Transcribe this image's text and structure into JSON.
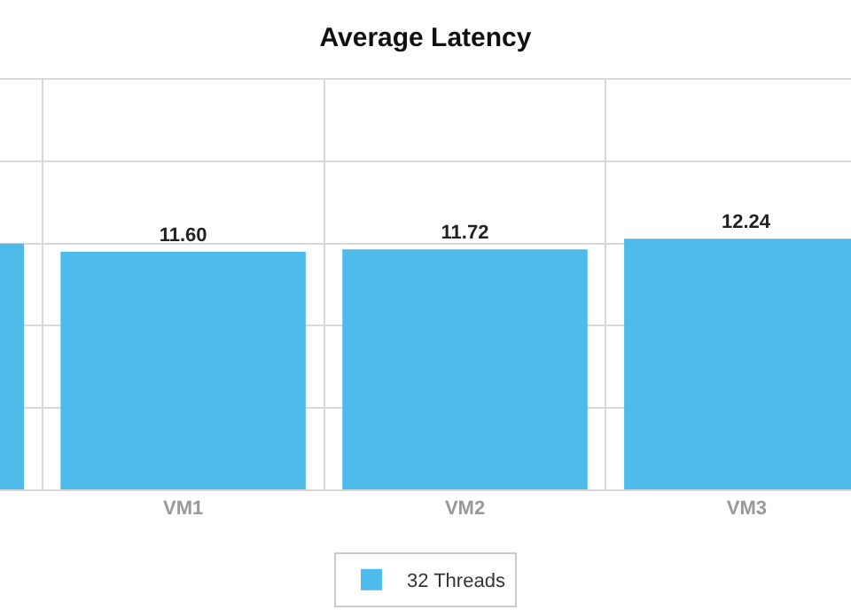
{
  "chart_data": {
    "type": "bar",
    "title": "Average Latency",
    "categories": [
      null,
      "VM1",
      "VM2",
      "VM3"
    ],
    "series": [
      {
        "name": "32 Threads",
        "color": "#4fbbeb",
        "values": [
          12.0,
          11.6,
          11.72,
          12.24
        ],
        "value_labels": [
          null,
          "11.60",
          "11.72",
          "12.24"
        ]
      }
    ],
    "ylim": [
      0,
      20
    ],
    "yticks": [
      {
        "value": 0,
        "label": null
      },
      {
        "value": 4,
        "label": null
      },
      {
        "value": 8,
        "label": null
      },
      {
        "value": 12,
        "label": null
      },
      {
        "value": 16,
        "label": null
      }
    ],
    "tick_labels": "x",
    "grid": true,
    "legend": "bottom"
  }
}
